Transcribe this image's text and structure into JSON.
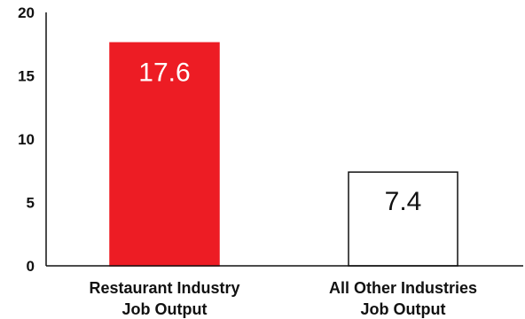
{
  "chart_data": {
    "type": "bar",
    "categories": [
      [
        "Restaurant Industry",
        "Job Output"
      ],
      [
        "All Other Industries",
        "Job Output"
      ]
    ],
    "values": [
      17.6,
      7.4
    ],
    "data_labels": [
      "17.6",
      "7.4"
    ],
    "title": "",
    "xlabel": "",
    "ylabel": "",
    "ylim": [
      0,
      20
    ],
    "yticks": [
      "0",
      "5",
      "10",
      "15",
      "20"
    ],
    "ytick_values": [
      0,
      5,
      10,
      15,
      20
    ],
    "grid": false,
    "legend": "none",
    "bar_fills": [
      "#ed1c24",
      "#ffffff"
    ],
    "bar_strokes": [
      "#ed1c24",
      "#111111"
    ],
    "label_colors": [
      "#ffffff",
      "#111111"
    ],
    "axis_color": "#111111"
  }
}
